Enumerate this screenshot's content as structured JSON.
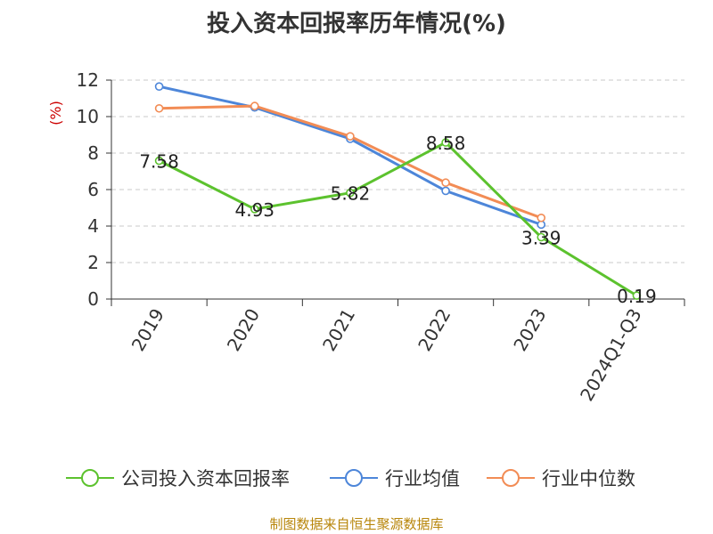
{
  "title": "投入资本回报率历年情况(%)",
  "source": "制图数据来自恒生聚源数据库",
  "chart_data": {
    "type": "line",
    "title": "投入资本回报率历年情况(%)",
    "ylabel": "(%)",
    "categories": [
      "2019",
      "2020",
      "2021",
      "2022",
      "2023",
      "2024Q1-Q3"
    ],
    "ylim": [
      0,
      12
    ],
    "yticks": [
      0,
      2,
      4,
      6,
      8,
      10,
      12
    ],
    "grid": true,
    "legend_position": "bottom",
    "series": [
      {
        "name": "公司投入资本回报率",
        "color": "#5cc22e",
        "values": [
          7.58,
          4.93,
          5.82,
          8.58,
          3.39,
          0.19
        ],
        "labels": [
          "7.58",
          "4.93",
          "5.82",
          "8.58",
          "3.39",
          "0.19"
        ]
      },
      {
        "name": "行业均值",
        "color": "#4d86d9",
        "values": [
          11.65,
          10.5,
          8.78,
          5.93,
          4.08,
          null
        ]
      },
      {
        "name": "行业中位数",
        "color": "#f28c55",
        "values": [
          10.45,
          10.58,
          8.92,
          6.38,
          4.45,
          null
        ]
      }
    ]
  }
}
